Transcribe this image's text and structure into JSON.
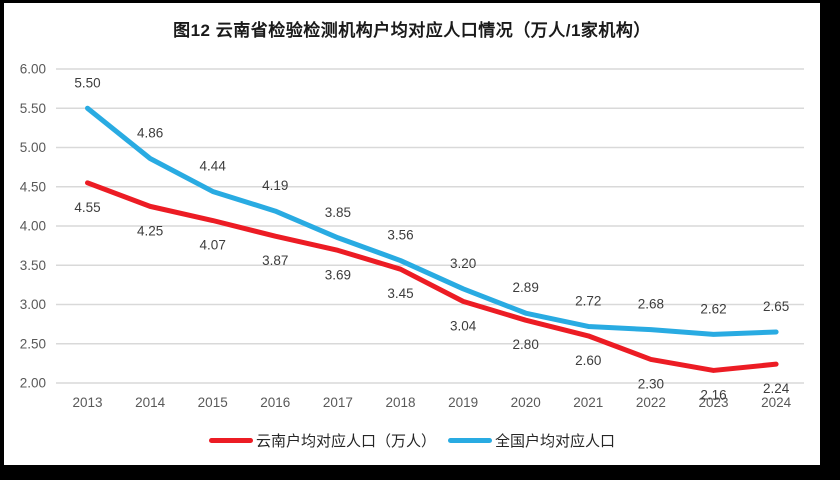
{
  "chart_data": {
    "type": "line",
    "title": "图12 云南省检验检测机构户均对应人口情况（万人/1家机构）",
    "categories": [
      "2013",
      "2014",
      "2015",
      "2016",
      "2017",
      "2018",
      "2019",
      "2020",
      "2021",
      "2022",
      "2023",
      "2024"
    ],
    "series": [
      {
        "name": "云南户均对应人口（万人）",
        "color": "#ec1c24",
        "label_position": "below",
        "values": [
          4.55,
          4.25,
          4.07,
          3.87,
          3.69,
          3.45,
          3.04,
          2.8,
          2.6,
          2.3,
          2.16,
          2.24
        ],
        "labels": [
          "4.55",
          "4.25",
          "4.07",
          "3.87",
          "3.69",
          "3.45",
          "3.04",
          "2.80",
          "2.60",
          "2.30",
          "2.16",
          "2.24"
        ]
      },
      {
        "name": "全国户均对应人口",
        "color": "#29abe2",
        "label_position": "above",
        "values": [
          5.5,
          4.86,
          4.44,
          4.19,
          3.85,
          3.56,
          3.2,
          2.89,
          2.72,
          2.68,
          2.62,
          2.65
        ],
        "labels": [
          "5.50",
          "4.86",
          "4.44",
          "4.19",
          "3.85",
          "3.56",
          "3.20",
          "2.89",
          "2.72",
          "2.68",
          "2.62",
          "2.65"
        ]
      }
    ],
    "y_tick_values": [
      6.0,
      5.5,
      5.0,
      4.5,
      4.0,
      3.5,
      3.0,
      2.5,
      2.0
    ],
    "y_tick_labels": [
      "6.00",
      "5.50",
      "5.00",
      "4.50",
      "4.00",
      "3.50",
      "3.00",
      "2.50",
      "2.00"
    ],
    "ylim": [
      2.0,
      6.0
    ],
    "xlabel": "",
    "ylabel": "",
    "grid": true,
    "legend_position": "bottom"
  },
  "colors": {
    "grid": "#d9d9d9",
    "axis_text": "#595959",
    "data_label_text": "#3d3d3d",
    "frame": "#000000",
    "background": "#ffffff"
  }
}
